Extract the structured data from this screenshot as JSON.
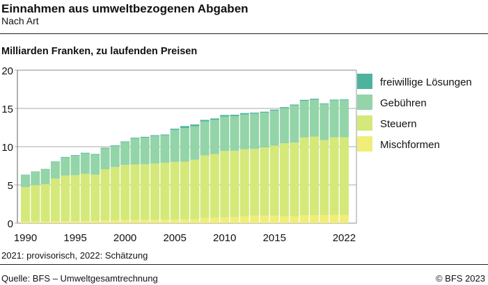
{
  "header": {
    "title": "Einnahmen aus umweltbezogenen Abgaben",
    "subtitle": "Nach Art"
  },
  "footer": {
    "note": "2021: provisorisch, 2022: Schätzung",
    "source": "Quelle: BFS – Umweltgesamtrechnung",
    "copyright": "© BFS 2023"
  },
  "chart_data": {
    "type": "bar",
    "stacked": true,
    "title": "Einnahmen aus umweltbezogenen Abgaben",
    "subtitle": "Nach Art",
    "ylabel": "Milliarden Franken, zu laufenden Preisen",
    "ylim": [
      0,
      20
    ],
    "yticks": [
      0,
      5,
      10,
      15,
      20
    ],
    "xticks": [
      "1990",
      "1995",
      "2000",
      "2005",
      "2010",
      "2015",
      "2022"
    ],
    "grid": true,
    "legend_position": "right",
    "categories": [
      1990,
      1991,
      1992,
      1993,
      1994,
      1995,
      1996,
      1997,
      1998,
      1999,
      2000,
      2001,
      2002,
      2003,
      2004,
      2005,
      2006,
      2007,
      2008,
      2009,
      2010,
      2011,
      2012,
      2013,
      2014,
      2015,
      2016,
      2017,
      2018,
      2019,
      2020,
      2021,
      2022
    ],
    "series": [
      {
        "name": "Mischformen",
        "color": "#f0ee78",
        "values": [
          0.2,
          0.2,
          0.22,
          0.25,
          0.25,
          0.27,
          0.28,
          0.3,
          0.35,
          0.38,
          0.42,
          0.43,
          0.44,
          0.45,
          0.45,
          0.46,
          0.49,
          0.5,
          0.7,
          0.72,
          0.75,
          0.79,
          0.91,
          0.97,
          0.97,
          0.97,
          0.91,
          0.91,
          1.03,
          1.03,
          1.03,
          1.09,
          1.09
        ]
      },
      {
        "name": "Steuern",
        "color": "#d4e97a",
        "values": [
          4.5,
          4.78,
          4.88,
          5.58,
          5.97,
          6.01,
          6.18,
          6.04,
          6.69,
          6.96,
          7.2,
          7.25,
          7.27,
          7.35,
          7.44,
          7.55,
          7.55,
          7.79,
          8.16,
          8.32,
          8.69,
          8.68,
          8.77,
          8.74,
          8.92,
          9.17,
          9.53,
          9.62,
          10.17,
          10.29,
          9.84,
          10.14,
          10.14
        ]
      },
      {
        "name": "Gebühren",
        "color": "#93d4a8",
        "values": [
          1.61,
          1.76,
          1.97,
          2.19,
          2.35,
          2.53,
          2.66,
          2.62,
          2.74,
          2.75,
          2.98,
          3.41,
          3.48,
          3.6,
          3.6,
          4.19,
          4.4,
          4.39,
          4.44,
          4.47,
          4.5,
          4.52,
          4.53,
          4.62,
          4.56,
          4.58,
          4.61,
          4.86,
          4.8,
          4.83,
          4.69,
          4.82,
          4.85
        ]
      },
      {
        "name": "freiwillige Lösungen",
        "color": "#4db39e",
        "values": [
          0.03,
          0.03,
          0.03,
          0.05,
          0.08,
          0.08,
          0.08,
          0.08,
          0.08,
          0.08,
          0.08,
          0.08,
          0.1,
          0.1,
          0.1,
          0.15,
          0.25,
          0.22,
          0.2,
          0.18,
          0.2,
          0.18,
          0.18,
          0.12,
          0.12,
          0.12,
          0.12,
          0.12,
          0.12,
          0.12,
          0.1,
          0.1,
          0.1
        ]
      }
    ]
  }
}
